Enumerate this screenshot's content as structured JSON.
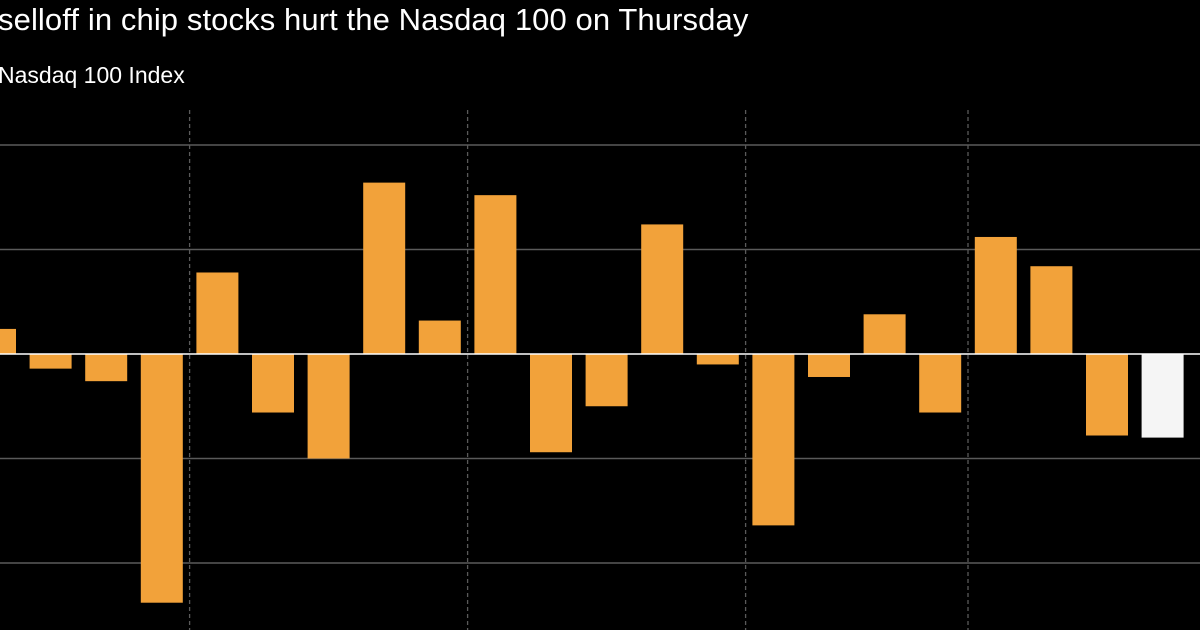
{
  "chart_data": {
    "type": "bar",
    "title": "selloff in chip stocks hurt the Nasdaq 100 on Thursday",
    "subtitle": "Nasdaq 100 Index",
    "xlabel": "",
    "ylabel": "",
    "categories": [
      "",
      "",
      "",
      "",
      "",
      "",
      "",
      "",
      "",
      "",
      "",
      "",
      "",
      "",
      "",
      "",
      "",
      "",
      "",
      "",
      "",
      ""
    ],
    "values": [
      1.2,
      -0.7,
      -1.3,
      -11.9,
      3.9,
      -2.8,
      -5.0,
      8.2,
      1.6,
      7.6,
      -4.7,
      -2.5,
      6.2,
      -0.5,
      -8.2,
      -1.1,
      1.9,
      -2.8,
      5.6,
      4.2,
      -3.9,
      -4.0
    ],
    "highlight_index": 21,
    "ylim": [
      -13.2,
      11.7
    ],
    "gridlines_y": [
      10,
      5,
      -5,
      -10
    ],
    "vertical_dividers_after_bar": [
      3,
      8,
      13,
      17
    ],
    "grid": true,
    "colors": {
      "background": "#000000",
      "bar": "#f2a23a",
      "highlight": "#f5f5f5",
      "gridline": "#5a5a5a",
      "zero_line": "#ffffff",
      "text": "#ffffff"
    }
  }
}
